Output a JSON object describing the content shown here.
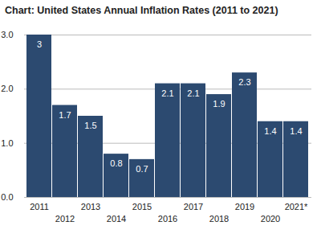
{
  "chart_data": {
    "type": "bar",
    "title": "Chart: United States Annual Inflation Rates (2011 to 2021)",
    "categories": [
      "2011",
      "2012",
      "2013",
      "2014",
      "2015",
      "2016",
      "2017",
      "2018",
      "2019",
      "2020",
      "2021*"
    ],
    "values": [
      3,
      1.7,
      1.5,
      0.8,
      0.7,
      2.1,
      2.1,
      1.9,
      2.3,
      1.4,
      1.4
    ],
    "color": "#2c4a70",
    "ylim": [
      0,
      3
    ],
    "yticks": [
      0,
      1,
      2,
      3
    ],
    "grid": true,
    "data_labels": true
  }
}
